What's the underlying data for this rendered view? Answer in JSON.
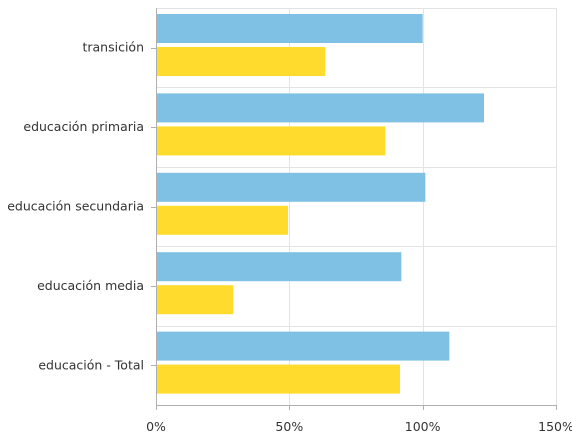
{
  "chart_data": {
    "type": "bar",
    "orientation": "horizontal",
    "categories": [
      "transición",
      "educación primaria",
      "educación secundaria",
      "educación media",
      "educación - Total"
    ],
    "series": [
      {
        "color": "#7fc1e4",
        "values": [
          100,
          123,
          101,
          92,
          110
        ]
      },
      {
        "color": "#fedb2d",
        "values": [
          63.5,
          86,
          49.5,
          29,
          91.5
        ]
      }
    ],
    "xlim": [
      0,
      150
    ],
    "x_ticks": [
      0,
      50,
      100,
      150
    ],
    "x_tick_labels": [
      "0%",
      "50%",
      "100%",
      "150%"
    ],
    "grid": true,
    "legend": "none"
  }
}
